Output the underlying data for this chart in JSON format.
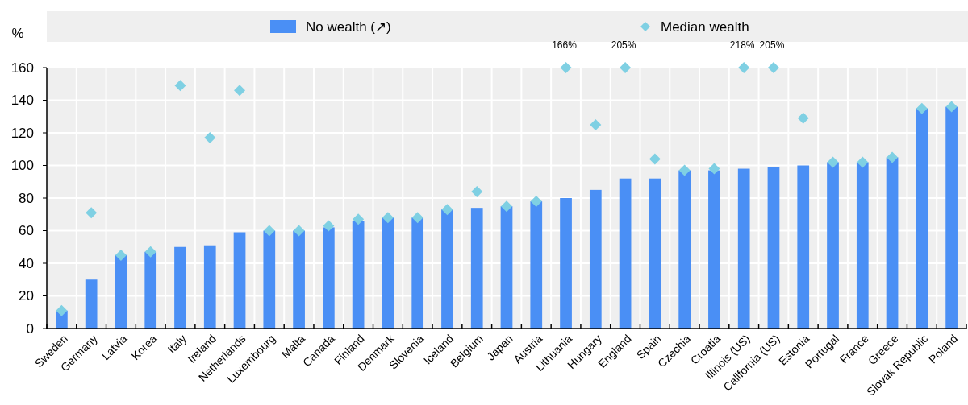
{
  "chart_data": {
    "type": "bar",
    "ylabel": "%",
    "categories": [
      "Sweden",
      "Germany",
      "Latvia",
      "Korea",
      "Italy",
      "Ireland",
      "Netherlands",
      "Luxembourg",
      "Malta",
      "Canada",
      "Finland",
      "Denmark",
      "Slovenia",
      "Iceland",
      "Belgium",
      "Japan",
      "Austria",
      "Lithuania",
      "Hungary",
      "England",
      "Spain",
      "Czechia",
      "Croatia",
      "Illinois (US)",
      "California (US)",
      "Estonia",
      "Portugal",
      "France",
      "Greece",
      "Slovak Republic",
      "Poland"
    ],
    "series": [
      {
        "name": "No wealth (↗)",
        "color": "#4a8ff5",
        "values": [
          11,
          30,
          45,
          47,
          50,
          51,
          59,
          60,
          60,
          62,
          66,
          68,
          68,
          73,
          74,
          75,
          78,
          80,
          85,
          92,
          92,
          97,
          97,
          98,
          99,
          100,
          102,
          102,
          105,
          135,
          136
        ]
      },
      {
        "name": "Median wealth",
        "type": "scatter",
        "color": "#7fd0e3",
        "marker": "diamond",
        "x": [
          "Sweden",
          "Germany",
          "Latvia",
          "Korea",
          "Italy",
          "Ireland",
          "Netherlands",
          "Luxembourg",
          "Malta",
          "Canada",
          "Finland",
          "Denmark",
          "Slovenia",
          "Iceland",
          "Belgium",
          "Japan",
          "Austria",
          "Lithuania",
          "Hungary",
          "England",
          "Spain",
          "Czechia",
          "Croatia",
          "Illinois (US)",
          "California (US)",
          "Estonia",
          "Portugal",
          "France",
          "Greece",
          "Slovak Republic",
          "Poland"
        ],
        "values": [
          11,
          71,
          45,
          47,
          149,
          117,
          146,
          60,
          60,
          63,
          67,
          68,
          68,
          73,
          84,
          75,
          78,
          160,
          125,
          160,
          104,
          97,
          98,
          160,
          160,
          129,
          102,
          102,
          105,
          135,
          136
        ]
      }
    ],
    "annotations": [
      {
        "text": "166%",
        "x": "Lithuania",
        "y": 160
      },
      {
        "text": "205%",
        "x": "England",
        "y": 160
      },
      {
        "text": "218%",
        "x": "Illinois (US)",
        "y": 160
      },
      {
        "text": "205%",
        "x": "California (US)",
        "y": 160
      }
    ],
    "ylim": [
      0,
      160
    ],
    "yticks": [
      0,
      20,
      40,
      60,
      80,
      100,
      120,
      140,
      160
    ],
    "grid": true,
    "legend": "top"
  }
}
